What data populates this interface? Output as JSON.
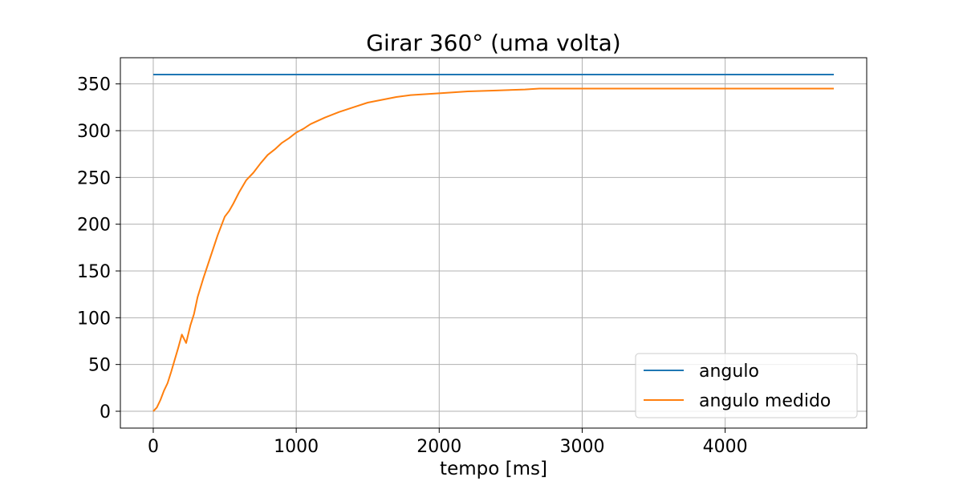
{
  "chart_data": {
    "type": "line",
    "title": "Girar 360° (uma volta)",
    "xlabel": "tempo [ms]",
    "ylabel": "",
    "xlim": [
      -230,
      4990
    ],
    "ylim": [
      -18,
      378
    ],
    "xticks": [
      0,
      1000,
      2000,
      3000,
      4000
    ],
    "yticks": [
      0,
      50,
      100,
      150,
      200,
      250,
      300,
      350
    ],
    "grid": true,
    "legend_position": "lower-right",
    "series": [
      {
        "name": "angulo",
        "color": "#1f77b4",
        "points": [
          [
            0,
            360
          ],
          [
            4760,
            360
          ]
        ]
      },
      {
        "name": "angulo medido",
        "color": "#ff7f0e",
        "points": [
          [
            0,
            0
          ],
          [
            25,
            4
          ],
          [
            50,
            12
          ],
          [
            75,
            22
          ],
          [
            100,
            30
          ],
          [
            125,
            42
          ],
          [
            150,
            55
          ],
          [
            175,
            68
          ],
          [
            200,
            82
          ],
          [
            230,
            73
          ],
          [
            260,
            92
          ],
          [
            285,
            104
          ],
          [
            310,
            122
          ],
          [
            350,
            142
          ],
          [
            400,
            165
          ],
          [
            450,
            188
          ],
          [
            500,
            208
          ],
          [
            530,
            214
          ],
          [
            560,
            222
          ],
          [
            600,
            234
          ],
          [
            650,
            247
          ],
          [
            700,
            255
          ],
          [
            750,
            265
          ],
          [
            800,
            274
          ],
          [
            850,
            280
          ],
          [
            900,
            287
          ],
          [
            950,
            292
          ],
          [
            1000,
            298
          ],
          [
            1050,
            302
          ],
          [
            1100,
            307
          ],
          [
            1200,
            314
          ],
          [
            1300,
            320
          ],
          [
            1400,
            325
          ],
          [
            1500,
            330
          ],
          [
            1600,
            333
          ],
          [
            1700,
            336
          ],
          [
            1800,
            338
          ],
          [
            2000,
            340
          ],
          [
            2200,
            342
          ],
          [
            2400,
            343
          ],
          [
            2600,
            344
          ],
          [
            2700,
            345
          ],
          [
            3000,
            345
          ],
          [
            3500,
            345
          ],
          [
            4000,
            345
          ],
          [
            4760,
            345
          ]
        ]
      }
    ]
  }
}
